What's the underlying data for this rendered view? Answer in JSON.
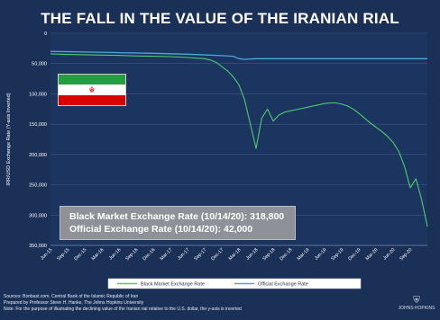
{
  "chart_data": {
    "type": "line",
    "title": "THE FALL IN THE VALUE OF THE IRANIAN RIAL",
    "ylabel": "IRR/USD Exchange Rate (Y-axis Inverted)",
    "y_inverted": true,
    "ylim": [
      0,
      350000
    ],
    "yticks": [
      "0",
      "50,000",
      "100,000",
      "150,000",
      "200,000",
      "250,000",
      "300,000",
      "350,000"
    ],
    "xticks": [
      "Jun-15",
      "Sep-15",
      "Dec-15",
      "Mar-16",
      "Jun-16",
      "Sep-16",
      "Dec-16",
      "Mar-17",
      "Jun-17",
      "Sep-17",
      "Dec-17",
      "Mar-18",
      "Jun-18",
      "Sep-18",
      "Dec-18",
      "Mar-19",
      "Jun-19",
      "Sep-19",
      "Dec-19",
      "Mar-20",
      "Jun-20",
      "Sep-20"
    ],
    "xlim": [
      0,
      66
    ],
    "series": [
      {
        "name": "Black Market Exchange Rate",
        "color": "#4ecb6a",
        "x": [
          0,
          3,
          6,
          9,
          12,
          15,
          18,
          21,
          24,
          27,
          28,
          29,
          30,
          31,
          32,
          33,
          34,
          35,
          36,
          37,
          38,
          39,
          40,
          41,
          42,
          43,
          44,
          45,
          46,
          47,
          48,
          49,
          50,
          51,
          52,
          53,
          54,
          55,
          56,
          57,
          58,
          59,
          60,
          61,
          62,
          63,
          64,
          65,
          66
        ],
        "y": [
          34000,
          35000,
          35500,
          36000,
          36500,
          37500,
          38000,
          38500,
          40000,
          42000,
          44000,
          48000,
          55000,
          62000,
          72000,
          85000,
          110000,
          150000,
          190000,
          140000,
          125000,
          145000,
          135000,
          130000,
          128000,
          126000,
          124000,
          122000,
          120000,
          118000,
          116000,
          115000,
          115000,
          117000,
          120000,
          125000,
          132000,
          140000,
          148000,
          155000,
          162000,
          170000,
          180000,
          195000,
          220000,
          255000,
          240000,
          275000,
          318800
        ]
      },
      {
        "name": "Official Exchange Rate",
        "color": "#4aa8dd",
        "x": [
          0,
          6,
          12,
          18,
          24,
          30,
          32,
          33,
          34,
          36,
          42,
          48,
          54,
          60,
          66
        ],
        "y": [
          30000,
          31000,
          32000,
          33000,
          34500,
          37000,
          38000,
          42000,
          43000,
          42000,
          42000,
          42000,
          42000,
          42000,
          42000
        ]
      }
    ],
    "annotations": [
      "Black Market Exchange Rate (10/14/20): 318,800",
      "Official Exchange Rate (10/14/20): 42,000"
    ]
  },
  "footer": {
    "sources": "Sources: Bonbast.com, Central Bank of the Islamic Republic of Iran",
    "prepared": "Prepared by Professor Steve H. Hanke, The Johns Hopkins University",
    "note": "Note: For the purpose of illustrating the declining value of the Iranian rial relative to the U.S. dollar, the y-axis is inverted"
  },
  "logo_text": "JOHNS HOPKINS",
  "colors": {
    "background": "#1a3057",
    "plot_area": "#1c3560",
    "grid": "#3e5682",
    "black_market": "#4ecb6a",
    "official": "#4aa8dd",
    "legend_bg": "#ffffff"
  }
}
